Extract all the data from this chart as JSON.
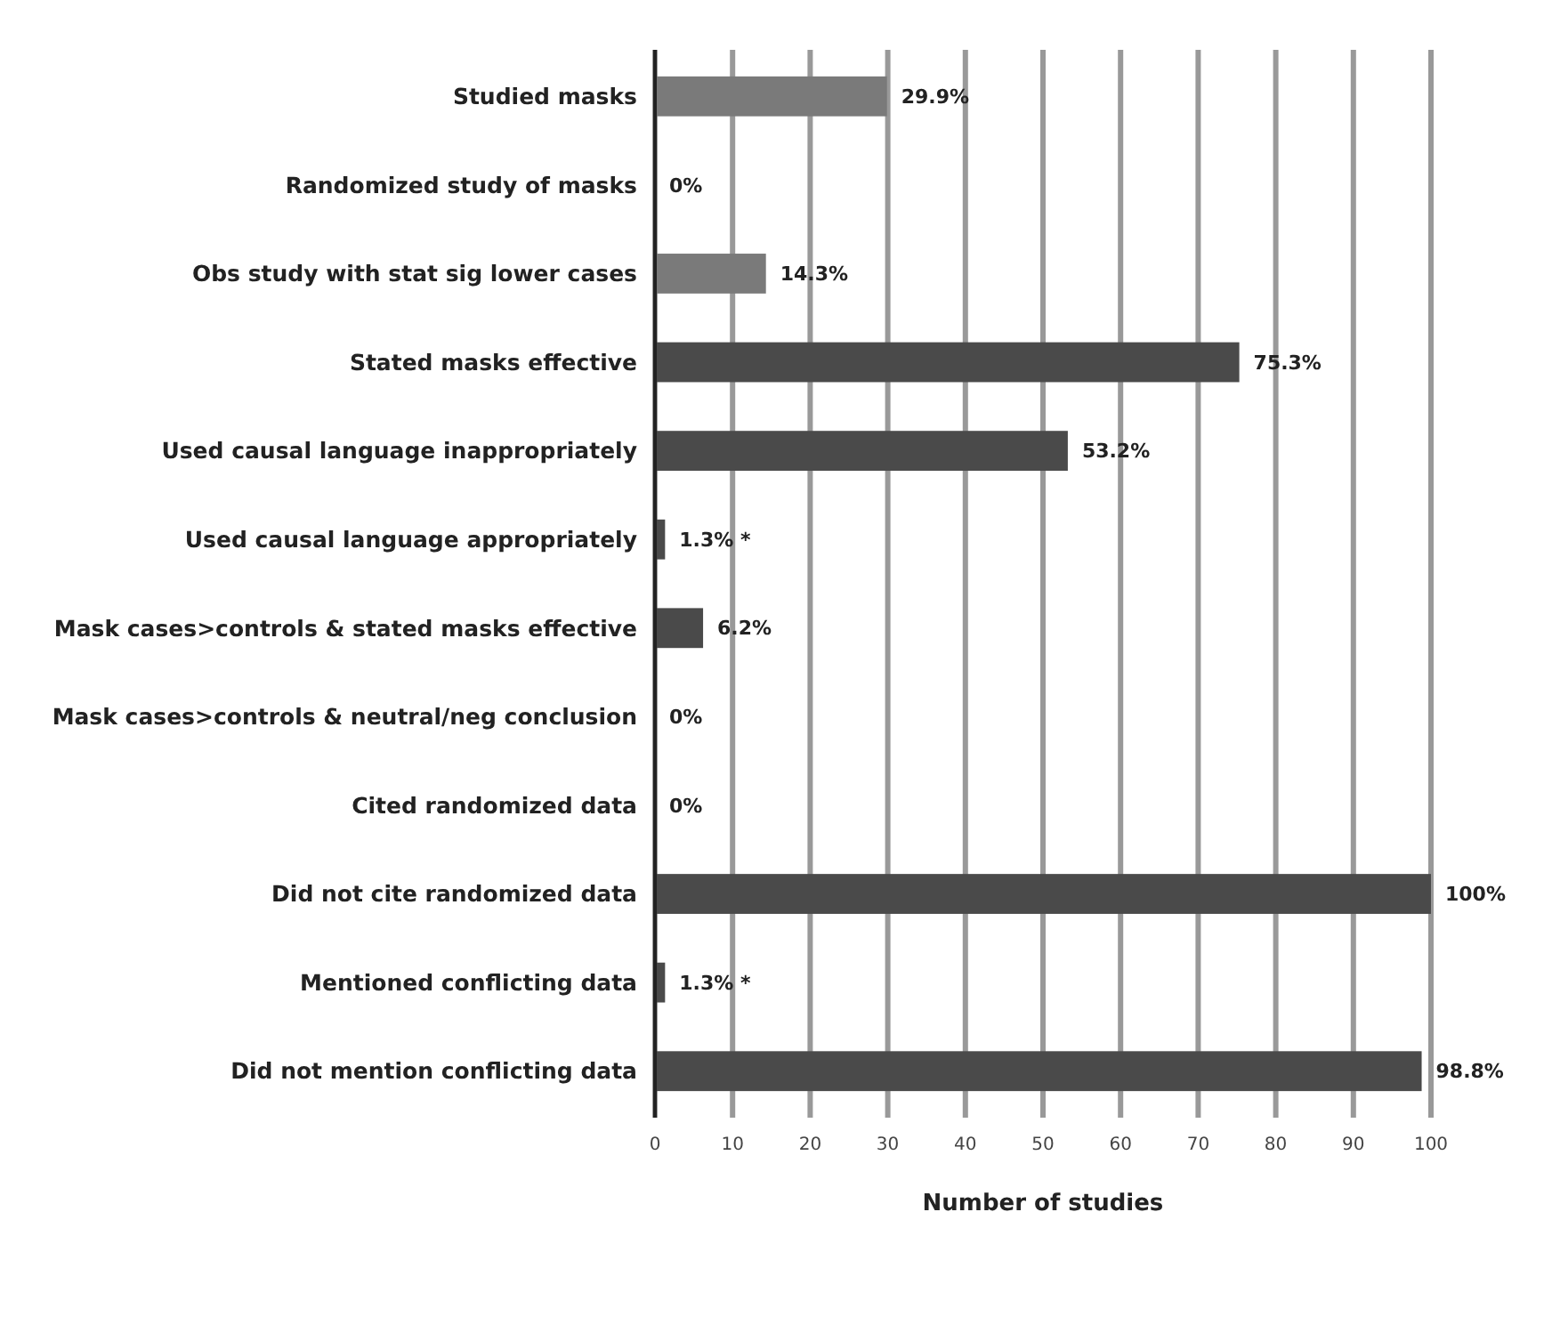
{
  "chart_data": {
    "type": "bar",
    "orientation": "horizontal",
    "xlabel": "Number of studies",
    "categories": [
      "Studied masks",
      "Randomized study of masks",
      "Obs study with stat sig lower cases",
      "Stated masks effective",
      "Used causal language inappropriately",
      "Used causal language appropriately",
      "Mask cases>controls & stated masks effective",
      "Mask cases>controls & neutral/neg conclusion",
      "Cited randomized data",
      "Did not cite randomized data",
      "Mentioned conflicting data",
      "Did not mention conflicting data"
    ],
    "values": [
      29.9,
      0,
      14.3,
      75.3,
      53.2,
      1.3,
      6.2,
      0,
      0,
      100,
      1.3,
      98.8
    ],
    "value_labels": [
      "29.9%",
      "0%",
      "14.3%",
      "75.3%",
      "53.2%",
      "1.3% *",
      "6.2%",
      "0%",
      "0%",
      "100%",
      "1.3% *",
      "98.8%"
    ],
    "colors": [
      "#7a7a7a",
      "#7a7a7a",
      "#7a7a7a",
      "#4a4a4a",
      "#4a4a4a",
      "#4a4a4a",
      "#4a4a4a",
      "#4a4a4a",
      "#4a4a4a",
      "#4a4a4a",
      "#4a4a4a",
      "#4a4a4a"
    ],
    "xlim": [
      0,
      100
    ],
    "xticks": [
      0,
      10,
      20,
      30,
      40,
      50,
      60,
      70,
      80,
      90,
      100
    ],
    "grid": "x"
  }
}
